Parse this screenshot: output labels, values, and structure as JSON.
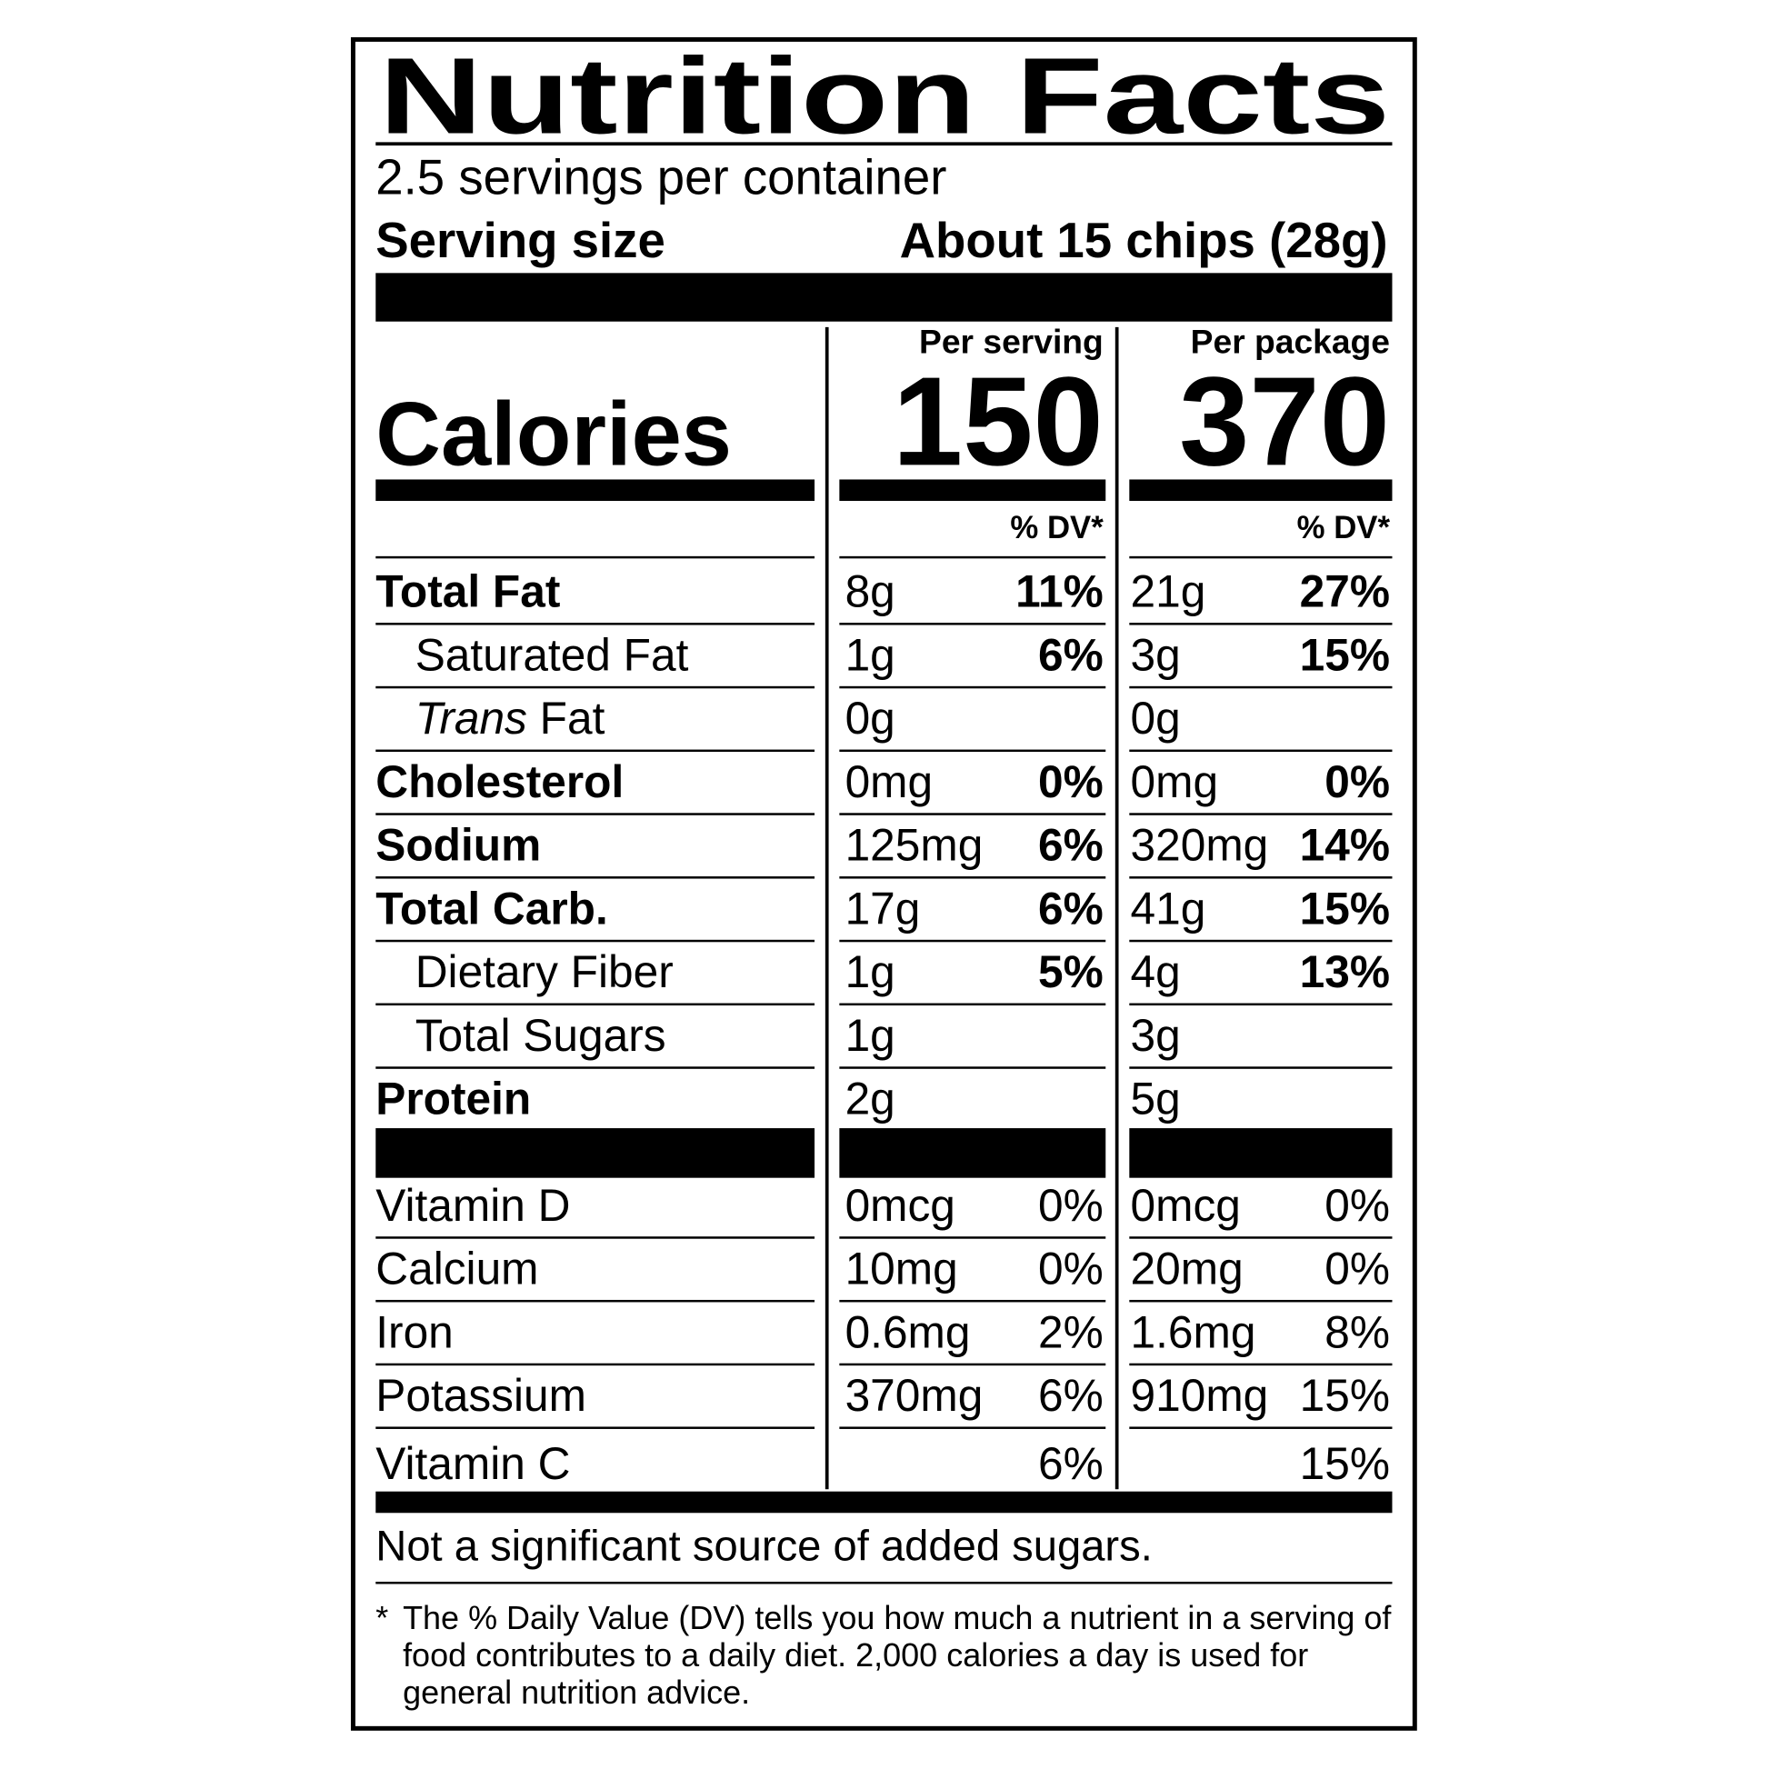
{
  "title": "Nutrition Facts",
  "servings": "2.5 servings per container",
  "serving_size": {
    "label": "Serving size",
    "value": "About 15 chips (28g)"
  },
  "calories": {
    "label": "Calories",
    "columns": [
      {
        "header": "Per serving",
        "value": "150",
        "dv_header": "% DV*"
      },
      {
        "header": "Per package",
        "value": "370",
        "dv_header": "% DV*"
      }
    ]
  },
  "nutrients": [
    {
      "name": "Total Fat",
      "bold": true,
      "serving_amount": "8g",
      "serving_dv": "11%",
      "package_amount": "21g",
      "package_dv": "27%"
    },
    {
      "name": "Saturated Fat",
      "indent": true,
      "serving_amount": "1g",
      "serving_dv": "6%",
      "package_amount": "3g",
      "package_dv": "15%"
    },
    {
      "italic": "Trans",
      "name": "Fat",
      "indent": true,
      "serving_amount": "0g",
      "package_amount": "0g"
    },
    {
      "name": "Cholesterol",
      "bold": true,
      "serving_amount": "0mg",
      "serving_dv": "0%",
      "package_amount": "0mg",
      "package_dv": "0%"
    },
    {
      "name": "Sodium",
      "bold": true,
      "serving_amount": "125mg",
      "serving_dv": "6%",
      "package_amount": "320mg",
      "package_dv": "14%"
    },
    {
      "name": "Total Carb.",
      "bold": true,
      "serving_amount": "17g",
      "serving_dv": "6%",
      "package_amount": "41g",
      "package_dv": "15%"
    },
    {
      "name": "Dietary Fiber",
      "indent": true,
      "serving_amount": "1g",
      "serving_dv": "5%",
      "package_amount": "4g",
      "package_dv": "13%"
    },
    {
      "name": "Total Sugars",
      "indent": true,
      "serving_amount": "1g",
      "package_amount": "3g"
    },
    {
      "name": "Protein",
      "bold": true,
      "serving_amount": "2g",
      "package_amount": "5g"
    }
  ],
  "vitamins": [
    {
      "name": "Vitamin D",
      "serving_amount": "0mcg",
      "serving_dv": "0%",
      "package_amount": "0mcg",
      "package_dv": "0%"
    },
    {
      "name": "Calcium",
      "serving_amount": "10mg",
      "serving_dv": "0%",
      "package_amount": "20mg",
      "package_dv": "0%"
    },
    {
      "name": "Iron",
      "serving_amount": "0.6mg",
      "serving_dv": "2%",
      "package_amount": "1.6mg",
      "package_dv": "8%"
    },
    {
      "name": "Potassium",
      "serving_amount": "370mg",
      "serving_dv": "6%",
      "package_amount": "910mg",
      "package_dv": "15%"
    },
    {
      "name": "Vitamin C",
      "serving_dv": "6%",
      "package_dv": "15%"
    }
  ],
  "added_sugars_note": "Not a significant source of added sugars.",
  "footnote": {
    "mark": "*",
    "lines": [
      "The % Daily Value (DV) tells you how much a nutrient in a serving of",
      "food contributes to a daily diet. 2,000 calories a day is used for",
      "general nutrition advice."
    ]
  }
}
